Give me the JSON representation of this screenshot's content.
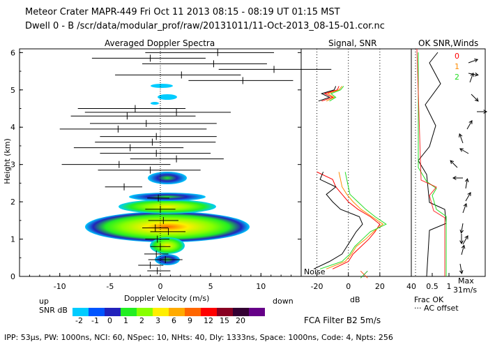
{
  "header": {
    "line1": "Meteor Crater   MAPR-449   Fri Oct 11 2013 08:15 - 08:19 UT 01:15 MST",
    "line2": "Dwell  0 -  B   /scr/data/modular_prof/raw/20131011/11-Oct-2013_08-15-01.cor.nc"
  },
  "footer": {
    "params": "IPP:  53μs,   PW: 1000ns,   NCI:  60,   NSpec: 10,  NHts: 40,   Dly: 1333ns,   Space: 1000ns,   Code: 4,   Npts: 256",
    "filter": "FCA Filter B2   5m/s",
    "up": "up",
    "down": "down",
    "snr_label": "SNR dB"
  },
  "colors": {
    "ch0": "#ff0000",
    "ch1": "#ff8c00",
    "ch2": "#22dd22",
    "snr_scale": [
      "#00ccff",
      "#0055ff",
      "#2222bb",
      "#22ee22",
      "#88ff00",
      "#ffee00",
      "#ffaa00",
      "#ff6600",
      "#ff0000",
      "#880022",
      "#330033",
      "#660088"
    ]
  },
  "chart_data": [
    {
      "type": "scatter",
      "title": "Averaged Doppler Spectra",
      "xlabel": "Doppler Velocity (m/s)",
      "ylabel": "Height (km)",
      "xlim": [
        -14,
        14
      ],
      "ylim": [
        0,
        6.1
      ],
      "xticks": [
        "-10",
        "-5",
        "0",
        "5",
        "10"
      ],
      "yticks": [
        "0",
        "1",
        "2",
        "3",
        "4",
        "5",
        "6"
      ],
      "snr_legend_labels": [
        "-2",
        "-1",
        "0",
        "1",
        "2",
        "3",
        "6",
        "9",
        "12",
        "15",
        "20"
      ],
      "winds": [
        {
          "h": 6.0,
          "v": 5.7,
          "lo": -1.5,
          "hi": 11.3
        },
        {
          "h": 5.85,
          "v": -1.0,
          "lo": -6.8,
          "hi": 4.5
        },
        {
          "h": 5.7,
          "v": 5.3,
          "lo": -1.8,
          "hi": 10.6
        },
        {
          "h": 5.55,
          "v": 11.3,
          "lo": 5.8,
          "hi": 17.0
        },
        {
          "h": 5.4,
          "v": 2.1,
          "lo": -4.5,
          "hi": 8.0
        },
        {
          "h": 5.25,
          "v": 8.2,
          "lo": 2.8,
          "hi": 13.2
        },
        {
          "h": 4.5,
          "v": -2.5,
          "lo": -8.2,
          "hi": 2.5
        },
        {
          "h": 4.4,
          "v": 1.6,
          "lo": -7.5,
          "hi": 7.0
        },
        {
          "h": 4.3,
          "v": -3.3,
          "lo": -8.9,
          "hi": 3.5
        },
        {
          "h": 4.1,
          "v": -1.4,
          "lo": -7.0,
          "hi": 5.6
        },
        {
          "h": 3.95,
          "v": -4.2,
          "lo": -10.0,
          "hi": 4.6
        },
        {
          "h": 3.75,
          "v": -0.4,
          "lo": -6.0,
          "hi": 5.6
        },
        {
          "h": 3.6,
          "v": -0.8,
          "lo": -6.5,
          "hi": 5.5
        },
        {
          "h": 3.45,
          "v": -3.0,
          "lo": -8.6,
          "hi": 2.3
        },
        {
          "h": 3.3,
          "v": -0.4,
          "lo": -6.0,
          "hi": 5.0
        },
        {
          "h": 3.15,
          "v": 1.6,
          "lo": -3.0,
          "hi": 6.3
        },
        {
          "h": 3.0,
          "v": -4.1,
          "lo": -9.8,
          "hi": 1.0
        },
        {
          "h": 2.85,
          "v": -1.0,
          "lo": -6.2,
          "hi": 4.0
        },
        {
          "h": 2.4,
          "v": -3.6,
          "lo": -5.5,
          "hi": -1.8
        },
        {
          "h": 2.1,
          "v": -0.2,
          "lo": -1.3,
          "hi": 0.9
        },
        {
          "h": 1.8,
          "v": 0.0,
          "lo": -1.5,
          "hi": 1.5
        },
        {
          "h": 1.5,
          "v": 0.3,
          "lo": -1.2,
          "hi": 1.8
        },
        {
          "h": 1.3,
          "v": -0.5,
          "lo": -1.8,
          "hi": 0.8
        },
        {
          "h": 1.2,
          "v": 0.8,
          "lo": -1.0,
          "hi": 2.5
        },
        {
          "h": 1.0,
          "v": -0.3,
          "lo": -1.5,
          "hi": 0.9
        },
        {
          "h": 0.8,
          "v": 0.0,
          "lo": -1.0,
          "hi": 1.0
        },
        {
          "h": 0.6,
          "v": -0.4,
          "lo": -1.6,
          "hi": 0.8
        },
        {
          "h": 0.45,
          "v": 0.5,
          "lo": -1.2,
          "hi": 2.2
        },
        {
          "h": 0.3,
          "v": -1.0,
          "lo": -2.2,
          "hi": 0.3
        },
        {
          "h": 0.15,
          "v": -0.3,
          "lo": -1.3,
          "hi": 1.0
        }
      ]
    },
    {
      "type": "line",
      "title": "Signal, SNR",
      "xlabel": "dB",
      "xlim": [
        -30,
        40
      ],
      "xticks": [
        "-20",
        "0",
        "20",
        "40"
      ],
      "noise_label": "Noise",
      "heights": [
        0.2,
        0.4,
        0.6,
        0.8,
        1.0,
        1.2,
        1.4,
        1.6,
        1.8,
        2.0,
        2.2,
        2.4,
        2.6,
        2.8
      ],
      "series": [
        {
          "name": "0",
          "values": [
            -10,
            0,
            3,
            8,
            13,
            17,
            20,
            14,
            6,
            0,
            -4,
            -8,
            -10,
            -20
          ]
        },
        {
          "name": "1",
          "values": [
            -14,
            -2,
            2,
            5,
            11,
            16,
            22,
            15,
            8,
            3,
            -1,
            -4,
            -5,
            -6
          ]
        },
        {
          "name": "2",
          "values": [
            -18,
            -4,
            1,
            4,
            9,
            14,
            24,
            17,
            11,
            6,
            1,
            0,
            -1,
            -2
          ]
        },
        {
          "name": "signal",
          "values": [
            -22,
            -12,
            -4,
            -1,
            2,
            5,
            9,
            7,
            -5,
            -10,
            -14,
            -8,
            -18,
            -16
          ]
        }
      ],
      "upper": {
        "heights": [
          4.7,
          4.8,
          4.9,
          5.0,
          5.1
        ],
        "series": [
          {
            "name": "0",
            "values": [
              -17,
              -10,
              -15,
              -7,
              -6
            ]
          },
          {
            "name": "1",
            "values": [
              -14,
              -9,
              -13,
              -6,
              -4
            ]
          },
          {
            "name": "2",
            "values": [
              -12,
              -8,
              -11,
              -5,
              -3
            ]
          },
          {
            "name": "signal",
            "values": [
              -19,
              -12,
              -17,
              -9,
              -8
            ]
          }
        ]
      }
    },
    {
      "type": "line",
      "title": "OK SNR,Winds",
      "channels": [
        "0",
        "1",
        "2"
      ],
      "xlabel": "Frac OK",
      "xticks": [
        "0.5",
        "1"
      ],
      "note": "AC offset",
      "max_label": "Max",
      "max_value": "31m/s"
    }
  ]
}
